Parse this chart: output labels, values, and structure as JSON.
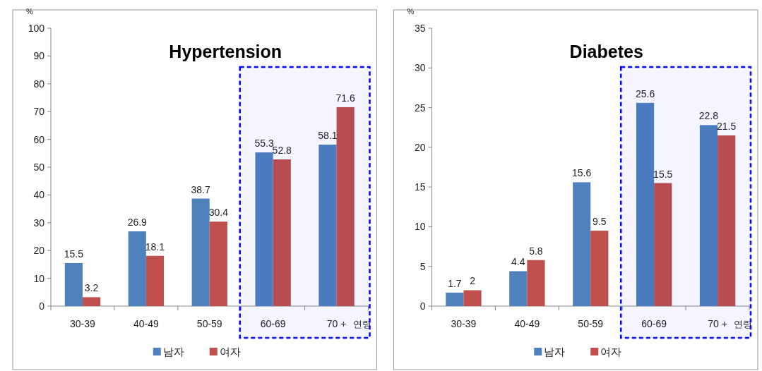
{
  "chart_data": [
    {
      "type": "bar",
      "title": "Hypertension",
      "ylabel": "%",
      "xlabel": "연령",
      "categories": [
        "30-39",
        "40-49",
        "50-59",
        "60-69",
        "70 +"
      ],
      "series": [
        {
          "name": "남자",
          "color": "#4f81bd",
          "values": [
            15.5,
            26.9,
            38.7,
            55.3,
            58.1
          ]
        },
        {
          "name": "여자",
          "color": "#c0504d",
          "values": [
            3.2,
            18.1,
            30.4,
            52.8,
            71.6
          ]
        }
      ],
      "ylim": [
        0,
        100
      ],
      "yticks": [
        0,
        10,
        20,
        30,
        40,
        50,
        60,
        70,
        80,
        90,
        100
      ],
      "data_labels": true,
      "legend": "bottom",
      "grid": false,
      "bands": [
        {
          "axis": "x",
          "from": "60-69",
          "to": "70 +",
          "color": "#0000ff"
        }
      ]
    },
    {
      "type": "bar",
      "title": "Diabetes",
      "ylabel": "%",
      "xlabel": "연령",
      "categories": [
        "30-39",
        "40-49",
        "50-59",
        "60-69",
        "70 +"
      ],
      "series": [
        {
          "name": "남자",
          "color": "#4f81bd",
          "values": [
            1.7,
            4.4,
            15.6,
            25.6,
            22.8
          ]
        },
        {
          "name": "여자",
          "color": "#c0504d",
          "values": [
            2,
            5.8,
            9.5,
            15.5,
            21.5
          ]
        }
      ],
      "ylim": [
        0,
        35
      ],
      "yticks": [
        0,
        5,
        10,
        15,
        20,
        25,
        30,
        35
      ],
      "data_labels": true,
      "legend": "bottom",
      "grid": false,
      "bands": [
        {
          "axis": "x",
          "from": "60-69",
          "to": "70 +",
          "color": "#0000ff"
        }
      ]
    }
  ]
}
